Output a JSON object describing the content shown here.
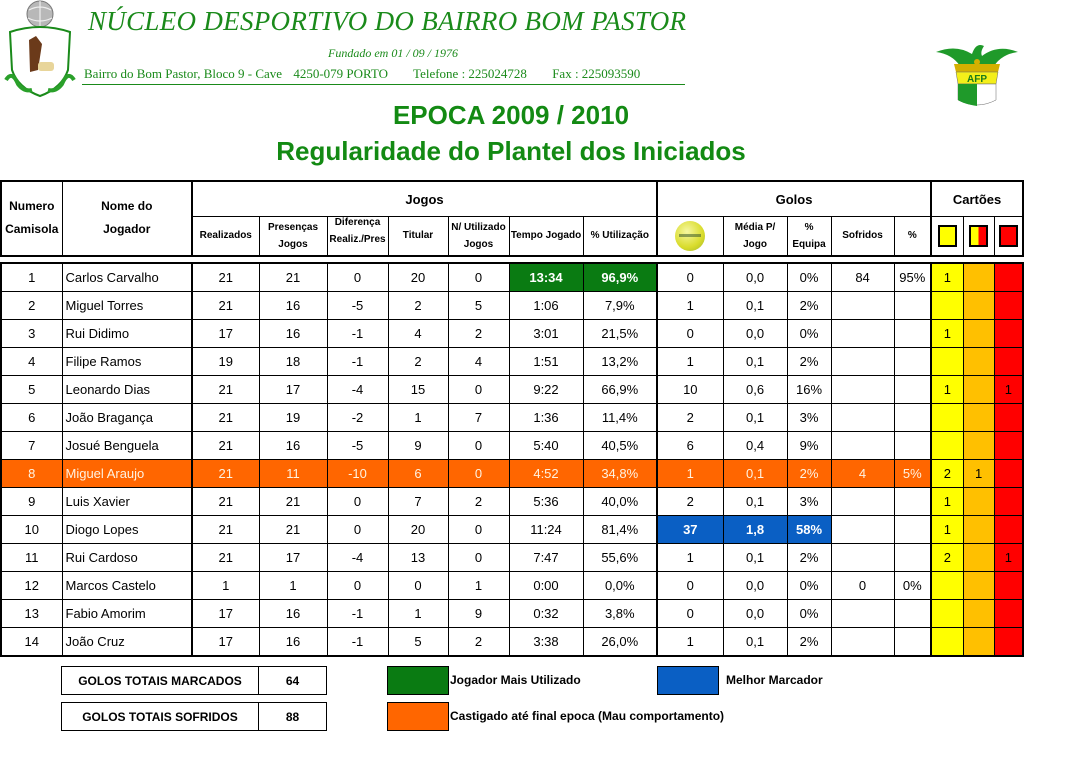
{
  "header": {
    "club_name": "NÚCLEO DESPORTIVO DO BAIRRO BOM PASTOR",
    "founded": "Fundado em 01 / 09 / 1976",
    "address": "Bairro do Bom Pastor, Bloco 9 - Cave",
    "postal": "4250-079 PORTO",
    "phone": "Telefone : 225024728",
    "fax": "Fax : 225093590",
    "left_logo": "club-crest-logo",
    "right_logo": "afp-association-logo",
    "right_logo_text": "AFP"
  },
  "title": {
    "season": "EPOCA 2009 / 2010",
    "subtitle": "Regularidade do Plantel dos Iniciados"
  },
  "table": {
    "col_numero": "Numero Camisola",
    "col_numero_l1": "Numero",
    "col_numero_l2": "Camisola",
    "col_nome_l1": "Nome do",
    "col_nome_l2": "Jogador",
    "group_jogos": "Jogos",
    "group_golos": "Golos",
    "group_cartoes": "Cartões",
    "sub": {
      "realizados": "Realizados",
      "presencas_l1": "Presenças",
      "presencas_l2": "Jogos",
      "diferenca_l1": "Diferença",
      "diferenca_l2": "Realiz./Pres",
      "titular": "Titular",
      "nutilizado_l1": "N/ Utilizado",
      "nutilizado_l2": "Jogos",
      "tempo": "Tempo Jogado",
      "utilizacao": "% Utilização",
      "golos_icon": "soccer-ball-icon",
      "media_l1": "Média P/",
      "media_l2": "Jogo",
      "equipa_l1": "%",
      "equipa_l2": "Equipa",
      "sofridos": "Sofridos",
      "pct": "%",
      "card_yellow": "yellow-card-icon",
      "card_second_yellow": "yellow-red-card-icon",
      "card_red": "red-card-icon"
    },
    "rows": [
      {
        "num": "1",
        "name": "Carlos Carvalho",
        "realizados": "21",
        "presencas": "21",
        "diferenca": "0",
        "titular": "20",
        "nutilizado": "0",
        "tempo": "13:34",
        "utilizacao": "96,9%",
        "golos": "0",
        "media": "0,0",
        "equipa": "0%",
        "sofridos": "84",
        "sofridos_pct": "95%",
        "yellow": "1",
        "yellow_red": "",
        "red": ""
      },
      {
        "num": "2",
        "name": "Miguel Torres",
        "realizados": "21",
        "presencas": "16",
        "diferenca": "-5",
        "titular": "2",
        "nutilizado": "5",
        "tempo": "1:06",
        "utilizacao": "7,9%",
        "golos": "1",
        "media": "0,1",
        "equipa": "2%",
        "sofridos": "",
        "sofridos_pct": "",
        "yellow": "",
        "yellow_red": "",
        "red": ""
      },
      {
        "num": "3",
        "name": "Rui Didimo",
        "realizados": "17",
        "presencas": "16",
        "diferenca": "-1",
        "titular": "4",
        "nutilizado": "2",
        "tempo": "3:01",
        "utilizacao": "21,5%",
        "golos": "0",
        "media": "0,0",
        "equipa": "0%",
        "sofridos": "",
        "sofridos_pct": "",
        "yellow": "1",
        "yellow_red": "",
        "red": ""
      },
      {
        "num": "4",
        "name": "Filipe Ramos",
        "realizados": "19",
        "presencas": "18",
        "diferenca": "-1",
        "titular": "2",
        "nutilizado": "4",
        "tempo": "1:51",
        "utilizacao": "13,2%",
        "golos": "1",
        "media": "0,1",
        "equipa": "2%",
        "sofridos": "",
        "sofridos_pct": "",
        "yellow": "",
        "yellow_red": "",
        "red": ""
      },
      {
        "num": "5",
        "name": "Leonardo Dias",
        "realizados": "21",
        "presencas": "17",
        "diferenca": "-4",
        "titular": "15",
        "nutilizado": "0",
        "tempo": "9:22",
        "utilizacao": "66,9%",
        "golos": "10",
        "media": "0,6",
        "equipa": "16%",
        "sofridos": "",
        "sofridos_pct": "",
        "yellow": "1",
        "yellow_red": "",
        "red": "1"
      },
      {
        "num": "6",
        "name": "João Bragança",
        "realizados": "21",
        "presencas": "19",
        "diferenca": "-2",
        "titular": "1",
        "nutilizado": "7",
        "tempo": "1:36",
        "utilizacao": "11,4%",
        "golos": "2",
        "media": "0,1",
        "equipa": "3%",
        "sofridos": "",
        "sofridos_pct": "",
        "yellow": "",
        "yellow_red": "",
        "red": ""
      },
      {
        "num": "7",
        "name": "Josué Benguela",
        "realizados": "21",
        "presencas": "16",
        "diferenca": "-5",
        "titular": "9",
        "nutilizado": "0",
        "tempo": "5:40",
        "utilizacao": "40,5%",
        "golos": "6",
        "media": "0,4",
        "equipa": "9%",
        "sofridos": "",
        "sofridos_pct": "",
        "yellow": "",
        "yellow_red": "",
        "red": ""
      },
      {
        "num": "8",
        "name": "Miguel Araujo",
        "realizados": "21",
        "presencas": "11",
        "diferenca": "-10",
        "titular": "6",
        "nutilizado": "0",
        "tempo": "4:52",
        "utilizacao": "34,8%",
        "golos": "1",
        "media": "0,1",
        "equipa": "2%",
        "sofridos": "4",
        "sofridos_pct": "5%",
        "yellow": "2",
        "yellow_red": "1",
        "red": ""
      },
      {
        "num": "9",
        "name": "Luis Xavier",
        "realizados": "21",
        "presencas": "21",
        "diferenca": "0",
        "titular": "7",
        "nutilizado": "2",
        "tempo": "5:36",
        "utilizacao": "40,0%",
        "golos": "2",
        "media": "0,1",
        "equipa": "3%",
        "sofridos": "",
        "sofridos_pct": "",
        "yellow": "1",
        "yellow_red": "",
        "red": ""
      },
      {
        "num": "10",
        "name": "Diogo Lopes",
        "realizados": "21",
        "presencas": "21",
        "diferenca": "0",
        "titular": "20",
        "nutilizado": "0",
        "tempo": "11:24",
        "utilizacao": "81,4%",
        "golos": "37",
        "media": "1,8",
        "equipa": "58%",
        "sofridos": "",
        "sofridos_pct": "",
        "yellow": "1",
        "yellow_red": "",
        "red": ""
      },
      {
        "num": "11",
        "name": "Rui Cardoso",
        "realizados": "21",
        "presencas": "17",
        "diferenca": "-4",
        "titular": "13",
        "nutilizado": "0",
        "tempo": "7:47",
        "utilizacao": "55,6%",
        "golos": "1",
        "media": "0,1",
        "equipa": "2%",
        "sofridos": "",
        "sofridos_pct": "",
        "yellow": "2",
        "yellow_red": "",
        "red": "1"
      },
      {
        "num": "12",
        "name": "Marcos Castelo",
        "realizados": "1",
        "presencas": "1",
        "diferenca": "0",
        "titular": "0",
        "nutilizado": "1",
        "tempo": "0:00",
        "utilizacao": "0,0%",
        "golos": "0",
        "media": "0,0",
        "equipa": "0%",
        "sofridos": "0",
        "sofridos_pct": "0%",
        "yellow": "",
        "yellow_red": "",
        "red": ""
      },
      {
        "num": "13",
        "name": "Fabio Amorim",
        "realizados": "17",
        "presencas": "16",
        "diferenca": "-1",
        "titular": "1",
        "nutilizado": "9",
        "tempo": "0:32",
        "utilizacao": "3,8%",
        "golos": "0",
        "media": "0,0",
        "equipa": "0%",
        "sofridos": "",
        "sofridos_pct": "",
        "yellow": "",
        "yellow_red": "",
        "red": ""
      },
      {
        "num": "14",
        "name": "João Cruz",
        "realizados": "17",
        "presencas": "16",
        "diferenca": "-1",
        "titular": "5",
        "nutilizado": "2",
        "tempo": "3:38",
        "utilizacao": "26,0%",
        "golos": "1",
        "media": "0,1",
        "equipa": "2%",
        "sofridos": "",
        "sofridos_pct": "",
        "yellow": "",
        "yellow_red": "",
        "red": ""
      }
    ]
  },
  "summary": {
    "golos_marcados_label": "GOLOS TOTAIS MARCADOS",
    "golos_marcados_value": "64",
    "golos_sofridos_label": "GOLOS TOTAIS SOFRIDOS",
    "golos_sofridos_value": "88"
  },
  "legend": {
    "most_used": {
      "label": "Jogador Mais Utilizado",
      "color": "#0a7b12"
    },
    "top_scorer": {
      "label": "Melhor Marcador",
      "color": "#0a5fc4"
    },
    "punished": {
      "label": "Castigado até final epoca (Mau comportamento)",
      "color": "#ff6600"
    }
  },
  "colors": {
    "title_green": "#138a13",
    "yellow_card": "#ffff00",
    "yellow_red_card": "#ffc000",
    "red_card": "#ff0000"
  }
}
